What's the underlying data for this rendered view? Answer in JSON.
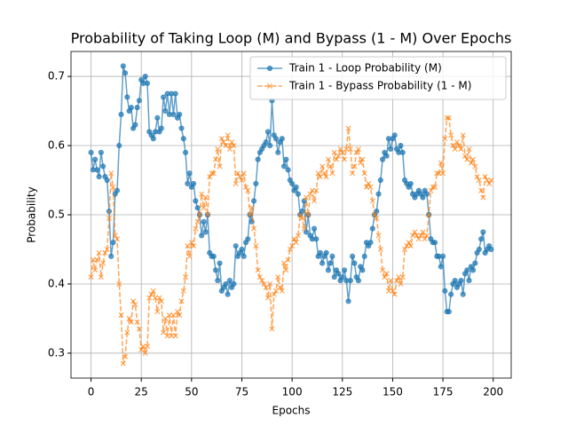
{
  "chart_data": {
    "type": "line",
    "title": "Probability of Taking Loop (M) and Bypass (1 - M) Over Epochs",
    "xlabel": "Epochs",
    "ylabel": "Probability",
    "x": [
      0,
      1,
      2,
      3,
      4,
      5,
      6,
      7,
      8,
      9,
      10,
      11,
      12,
      13,
      14,
      15,
      16,
      17,
      18,
      19,
      20,
      21,
      22,
      23,
      24,
      25,
      26,
      27,
      28,
      29,
      30,
      31,
      32,
      33,
      34,
      35,
      36,
      37,
      38,
      39,
      40,
      41,
      42,
      43,
      44,
      45,
      46,
      47,
      48,
      49,
      50,
      51,
      52,
      53,
      54,
      55,
      56,
      57,
      58,
      59,
      60,
      61,
      62,
      63,
      64,
      65,
      66,
      67,
      68,
      69,
      70,
      71,
      72,
      73,
      74,
      75,
      76,
      77,
      78,
      79,
      80,
      81,
      82,
      83,
      84,
      85,
      86,
      87,
      88,
      89,
      90,
      91,
      92,
      93,
      94,
      95,
      96,
      97,
      98,
      99,
      100,
      101,
      102,
      103,
      104,
      105,
      106,
      107,
      108,
      109,
      110,
      111,
      112,
      113,
      114,
      115,
      116,
      117,
      118,
      119,
      120,
      121,
      122,
      123,
      124,
      125,
      126,
      127,
      128,
      129,
      130,
      131,
      132,
      133,
      134,
      135,
      136,
      137,
      138,
      139,
      140,
      141,
      142,
      143,
      144,
      145,
      146,
      147,
      148,
      149,
      150,
      151,
      152,
      153,
      154,
      155,
      156,
      157,
      158,
      159,
      160,
      161,
      162,
      163,
      164,
      165,
      166,
      167,
      168,
      169,
      170,
      171,
      172,
      173,
      174,
      175,
      176,
      177,
      178,
      179,
      180,
      181,
      182,
      183,
      184,
      185,
      186,
      187,
      188,
      189,
      190,
      191,
      192,
      193,
      194,
      195,
      196,
      197,
      198,
      199
    ],
    "series": [
      {
        "name": "Train 1 - Loop Probability (M)",
        "color": "#1f77b4",
        "linestyle": "solid",
        "marker": "circle",
        "values": [
          0.59,
          0.565,
          0.58,
          0.565,
          0.555,
          0.59,
          0.57,
          0.555,
          0.55,
          0.505,
          0.44,
          0.46,
          0.53,
          0.535,
          0.6,
          0.645,
          0.715,
          0.705,
          0.67,
          0.65,
          0.655,
          0.625,
          0.63,
          0.655,
          0.665,
          0.695,
          0.69,
          0.7,
          0.69,
          0.62,
          0.615,
          0.61,
          0.62,
          0.64,
          0.62,
          0.625,
          0.67,
          0.65,
          0.675,
          0.645,
          0.675,
          0.645,
          0.675,
          0.64,
          0.645,
          0.625,
          0.61,
          0.59,
          0.545,
          0.56,
          0.54,
          0.545,
          0.52,
          0.51,
          0.5,
          0.47,
          0.49,
          0.475,
          0.5,
          0.445,
          0.44,
          0.44,
          0.42,
          0.405,
          0.43,
          0.39,
          0.395,
          0.4,
          0.385,
          0.405,
          0.395,
          0.4,
          0.455,
          0.44,
          0.445,
          0.45,
          0.44,
          0.46,
          0.465,
          0.5,
          0.49,
          0.52,
          0.545,
          0.58,
          0.59,
          0.595,
          0.6,
          0.605,
          0.62,
          0.6,
          0.665,
          0.615,
          0.61,
          0.59,
          0.605,
          0.61,
          0.57,
          0.58,
          0.565,
          0.55,
          0.545,
          0.535,
          0.54,
          0.53,
          0.5,
          0.505,
          0.52,
          0.475,
          0.5,
          0.47,
          0.465,
          0.48,
          0.465,
          0.44,
          0.445,
          0.43,
          0.44,
          0.445,
          0.42,
          0.43,
          0.44,
          0.41,
          0.42,
          0.415,
          0.405,
          0.41,
          0.42,
          0.405,
          0.375,
          0.405,
          0.44,
          0.43,
          0.41,
          0.405,
          0.425,
          0.42,
          0.44,
          0.46,
          0.455,
          0.46,
          0.48,
          0.5,
          0.505,
          0.53,
          0.55,
          0.58,
          0.59,
          0.585,
          0.61,
          0.595,
          0.61,
          0.615,
          0.595,
          0.59,
          0.6,
          0.59,
          0.55,
          0.545,
          0.54,
          0.545,
          0.53,
          0.525,
          0.53,
          0.535,
          0.53,
          0.525,
          0.535,
          0.53,
          0.5,
          0.465,
          0.46,
          0.46,
          0.44,
          0.44,
          0.425,
          0.44,
          0.39,
          0.36,
          0.36,
          0.385,
          0.4,
          0.405,
          0.395,
          0.4,
          0.405,
          0.385,
          0.415,
          0.42,
          0.405,
          0.425,
          0.42,
          0.43,
          0.445,
          0.45,
          0.465,
          0.475,
          0.445,
          0.45,
          0.455,
          0.45
        ]
      },
      {
        "name": "Train 1 - Bypass Probability (1 - M)",
        "color": "#ff7f0e",
        "linestyle": "dashed",
        "marker": "x",
        "values": [
          0.41,
          0.435,
          0.42,
          0.435,
          0.445,
          0.41,
          0.43,
          0.445,
          0.45,
          0.495,
          0.56,
          0.54,
          0.47,
          0.465,
          0.4,
          0.355,
          0.285,
          0.295,
          0.33,
          0.35,
          0.345,
          0.375,
          0.37,
          0.345,
          0.335,
          0.305,
          0.31,
          0.3,
          0.31,
          0.38,
          0.385,
          0.39,
          0.38,
          0.36,
          0.38,
          0.375,
          0.33,
          0.35,
          0.325,
          0.355,
          0.325,
          0.355,
          0.325,
          0.36,
          0.355,
          0.375,
          0.39,
          0.41,
          0.455,
          0.44,
          0.46,
          0.455,
          0.48,
          0.49,
          0.5,
          0.53,
          0.51,
          0.525,
          0.5,
          0.555,
          0.56,
          0.56,
          0.58,
          0.595,
          0.57,
          0.61,
          0.605,
          0.6,
          0.615,
          0.595,
          0.605,
          0.6,
          0.545,
          0.56,
          0.555,
          0.55,
          0.56,
          0.54,
          0.535,
          0.5,
          0.51,
          0.48,
          0.455,
          0.42,
          0.41,
          0.405,
          0.4,
          0.395,
          0.38,
          0.4,
          0.335,
          0.385,
          0.39,
          0.41,
          0.395,
          0.39,
          0.43,
          0.42,
          0.435,
          0.45,
          0.455,
          0.465,
          0.46,
          0.47,
          0.5,
          0.495,
          0.48,
          0.525,
          0.5,
          0.53,
          0.535,
          0.52,
          0.535,
          0.56,
          0.555,
          0.57,
          0.56,
          0.555,
          0.58,
          0.57,
          0.56,
          0.59,
          0.58,
          0.585,
          0.595,
          0.59,
          0.58,
          0.595,
          0.625,
          0.595,
          0.56,
          0.57,
          0.59,
          0.595,
          0.575,
          0.58,
          0.56,
          0.54,
          0.545,
          0.54,
          0.52,
          0.5,
          0.495,
          0.47,
          0.45,
          0.42,
          0.41,
          0.415,
          0.39,
          0.405,
          0.39,
          0.385,
          0.405,
          0.41,
          0.4,
          0.41,
          0.45,
          0.455,
          0.46,
          0.455,
          0.47,
          0.475,
          0.47,
          0.465,
          0.47,
          0.475,
          0.465,
          0.47,
          0.5,
          0.535,
          0.54,
          0.54,
          0.56,
          0.56,
          0.575,
          0.56,
          0.61,
          0.64,
          0.64,
          0.615,
          0.6,
          0.595,
          0.605,
          0.6,
          0.595,
          0.615,
          0.585,
          0.58,
          0.595,
          0.575,
          0.58,
          0.57,
          0.555,
          0.55,
          0.535,
          0.525,
          0.555,
          0.55,
          0.545,
          0.55
        ]
      }
    ],
    "xlim": [
      -9.95,
      208.95
    ],
    "xticks": [
      0,
      25,
      50,
      75,
      100,
      125,
      150,
      175,
      200
    ],
    "ylim": [
      0.264,
      0.736
    ],
    "yticks": [
      0.3,
      0.4,
      0.5,
      0.6,
      0.7
    ],
    "grid": true,
    "legend": "upper right"
  }
}
